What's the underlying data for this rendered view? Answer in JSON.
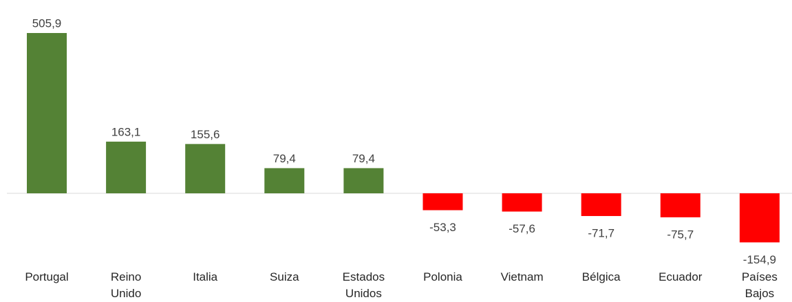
{
  "chart_data": {
    "type": "bar",
    "categories": [
      "Portugal",
      "Reino Unido",
      "Italia",
      "Suiza",
      "Estados Unidos",
      "Polonia",
      "Vietnam",
      "Bélgica",
      "Ecuador",
      "Países Bajos"
    ],
    "values": [
      505.9,
      163.1,
      155.6,
      79.4,
      79.4,
      -53.3,
      -57.6,
      -71.7,
      -75.7,
      -154.9
    ],
    "value_labels": [
      "505,9",
      "163,1",
      "155,6",
      "79,4",
      "79,4",
      "-53,3",
      "-57,6",
      "-71,7",
      "-75,7",
      "-154,9"
    ],
    "positive_color": "#548235",
    "negative_color": "#ff0000"
  }
}
